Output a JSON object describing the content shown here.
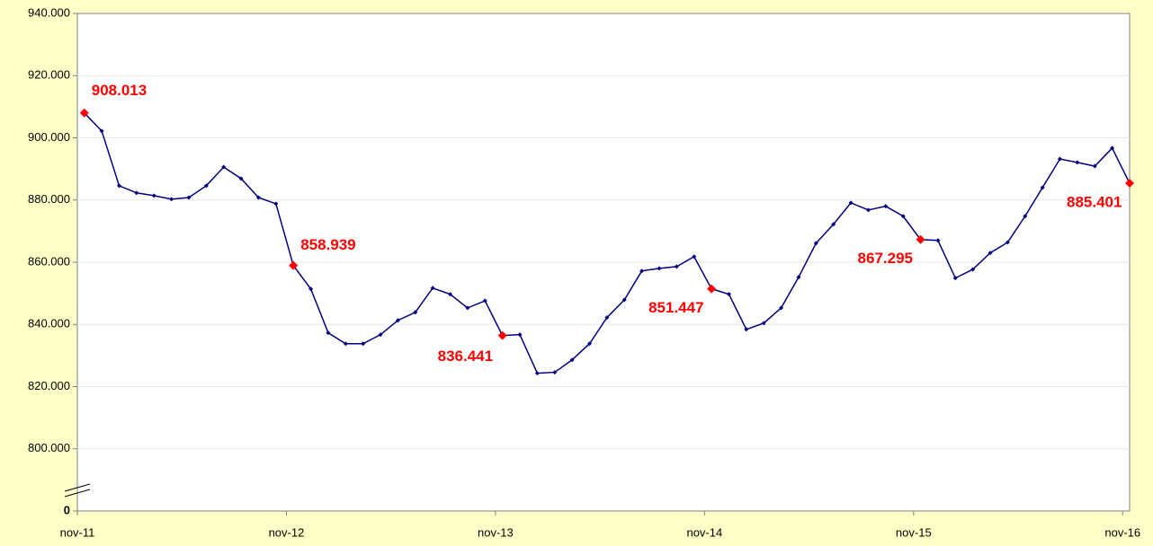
{
  "chart_data": {
    "type": "line",
    "categories": [
      "nov-11",
      null,
      null,
      null,
      null,
      null,
      null,
      null,
      null,
      null,
      null,
      null,
      "nov-12",
      null,
      null,
      null,
      null,
      null,
      null,
      null,
      null,
      null,
      null,
      null,
      "nov-13",
      null,
      null,
      null,
      null,
      null,
      null,
      null,
      null,
      null,
      null,
      null,
      "nov-14",
      null,
      null,
      null,
      null,
      null,
      null,
      null,
      null,
      null,
      null,
      null,
      "nov-15",
      null,
      null,
      null,
      null,
      null,
      null,
      null,
      null,
      null,
      null,
      null,
      "nov-16"
    ],
    "series": [
      {
        "color": "#000080",
        "values": [
          908013,
          902200,
          884600,
          882300,
          881400,
          880300,
          880800,
          884600,
          890600,
          886900,
          880800,
          878800,
          858939,
          851400,
          837300,
          833800,
          833800,
          836700,
          841300,
          843900,
          851700,
          849700,
          845300,
          847600,
          836441,
          836700,
          824300,
          824600,
          828600,
          833800,
          842200,
          847900,
          857200,
          858000,
          858600,
          861800,
          851447,
          849700,
          838400,
          840400,
          845300,
          855200,
          866100,
          872200,
          879100,
          876800,
          878000,
          874800,
          867295,
          867000,
          854900,
          857700,
          863000,
          866400,
          874800,
          884000,
          893200,
          892100,
          890900,
          896700,
          885401
        ],
        "value_labels": [
          "908.013",
          null,
          null,
          null,
          null,
          null,
          null,
          null,
          null,
          null,
          null,
          null,
          "858.939",
          null,
          null,
          null,
          null,
          null,
          null,
          null,
          null,
          null,
          null,
          null,
          "836.441",
          null,
          null,
          null,
          null,
          null,
          null,
          null,
          null,
          null,
          null,
          null,
          "851.447",
          null,
          null,
          null,
          null,
          null,
          null,
          null,
          null,
          null,
          null,
          null,
          "867.295",
          null,
          null,
          null,
          null,
          null,
          null,
          null,
          null,
          null,
          null,
          null,
          "885.401"
        ],
        "label_color": "#ff0000"
      }
    ],
    "ylim": [
      0,
      940000
    ],
    "axis_break": [
      0,
      780000
    ],
    "yticks": [
      0,
      {
        "value": 800000,
        "label": "800.000"
      },
      {
        "value": 820000,
        "label": "820.000"
      },
      {
        "value": 840000,
        "label": "840.000"
      },
      {
        "value": 860000,
        "label": "860.000"
      },
      {
        "value": 880000,
        "label": "880.000"
      },
      {
        "value": 900000,
        "label": "900.000"
      },
      {
        "value": 920000,
        "label": "920.000"
      },
      {
        "value": 940000,
        "label": "940.000"
      }
    ],
    "grid": true
  }
}
